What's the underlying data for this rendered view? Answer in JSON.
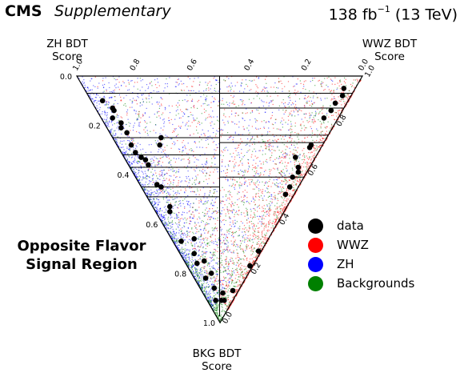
{
  "header": {
    "experiment": "CMS",
    "tag": "Supplementary",
    "lumi_value": "138 fb",
    "lumi_exp": "−1",
    "lumi_energy": "(13 TeV)"
  },
  "region_label": [
    "Opposite Flavor",
    "Signal Region"
  ],
  "colors": {
    "data": "#000000",
    "WWZ": "#ff0000",
    "ZH": "#0000ff",
    "Backgrounds": "#008000"
  },
  "chart_data": {
    "type": "scatter",
    "subtype": "ternary",
    "axes": {
      "ZH": {
        "label_line1": "ZH BDT",
        "label_line2": "Score",
        "ticks": [
          "0.0",
          "0.2",
          "0.4",
          "0.6",
          "0.8",
          "1.0"
        ],
        "range": [
          0,
          1
        ]
      },
      "WWZ": {
        "label_line1": "WWZ BDT",
        "label_line2": "Score",
        "ticks": [
          "0.0",
          "0.2",
          "0.4",
          "0.6",
          "0.8",
          "1.0"
        ],
        "range": [
          0,
          1
        ]
      },
      "BKG": {
        "label_line1": "BKG BDT",
        "label_line2": "Score",
        "ticks": [
          "0.0",
          "0.2",
          "0.4",
          "0.6",
          "0.8",
          "1.0"
        ],
        "range": [
          0,
          1
        ]
      }
    },
    "category_boundaries": {
      "zh_region_bkg_cuts": [
        0.07,
        0.25,
        0.32,
        0.37,
        0.45,
        0.49
      ],
      "wwz_region_bkg_cuts": [
        0.07,
        0.13,
        0.24,
        0.27,
        0.41
      ]
    },
    "legend": [
      {
        "label": "data",
        "color": "#000000"
      },
      {
        "label": "WWZ",
        "color": "#ff0000"
      },
      {
        "label": "ZH",
        "color": "#0000ff"
      },
      {
        "label": "Backgrounds",
        "color": "#008000"
      }
    ],
    "data_points": [
      {
        "zh": 0.86,
        "wwz": 0.04,
        "bkg": 0.1
      },
      {
        "zh": 0.8,
        "wwz": 0.06,
        "bkg": 0.14
      },
      {
        "zh": 0.81,
        "wwz": 0.06,
        "bkg": 0.13
      },
      {
        "zh": 0.74,
        "wwz": 0.05,
        "bkg": 0.21
      },
      {
        "zh": 0.75,
        "wwz": 0.06,
        "bkg": 0.19
      },
      {
        "zh": 0.79,
        "wwz": 0.04,
        "bkg": 0.17
      },
      {
        "zh": 0.71,
        "wwz": 0.06,
        "bkg": 0.23
      },
      {
        "zh": 0.58,
        "wwz": 0.17,
        "bkg": 0.25
      },
      {
        "zh": 0.57,
        "wwz": 0.15,
        "bkg": 0.28
      },
      {
        "zh": 0.67,
        "wwz": 0.05,
        "bkg": 0.28
      },
      {
        "zh": 0.61,
        "wwz": 0.06,
        "bkg": 0.33
      },
      {
        "zh": 0.64,
        "wwz": 0.05,
        "bkg": 0.31
      },
      {
        "zh": 0.57,
        "wwz": 0.07,
        "bkg": 0.36
      },
      {
        "zh": 0.59,
        "wwz": 0.07,
        "bkg": 0.34
      },
      {
        "zh": 0.5,
        "wwz": 0.06,
        "bkg": 0.44
      },
      {
        "zh": 0.48,
        "wwz": 0.07,
        "bkg": 0.45
      },
      {
        "zh": 0.41,
        "wwz": 0.06,
        "bkg": 0.53
      },
      {
        "zh": 0.4,
        "wwz": 0.05,
        "bkg": 0.55
      },
      {
        "zh": 0.3,
        "wwz": 0.03,
        "bkg": 0.67
      },
      {
        "zh": 0.26,
        "wwz": 0.08,
        "bkg": 0.66
      },
      {
        "zh": 0.23,
        "wwz": 0.05,
        "bkg": 0.72
      },
      {
        "zh": 0.2,
        "wwz": 0.04,
        "bkg": 0.76
      },
      {
        "zh": 0.18,
        "wwz": 0.07,
        "bkg": 0.75
      },
      {
        "zh": 0.14,
        "wwz": 0.04,
        "bkg": 0.82
      },
      {
        "zh": 0.13,
        "wwz": 0.07,
        "bkg": 0.8
      },
      {
        "zh": 0.09,
        "wwz": 0.05,
        "bkg": 0.86
      },
      {
        "zh": 0.06,
        "wwz": 0.03,
        "bkg": 0.91
      },
      {
        "zh": 0.05,
        "wwz": 0.07,
        "bkg": 0.88
      },
      {
        "zh": 0.04,
        "wwz": 0.05,
        "bkg": 0.91
      },
      {
        "zh": 0.03,
        "wwz": 0.06,
        "bkg": 0.91
      },
      {
        "zh": 0.02,
        "wwz": 0.11,
        "bkg": 0.87
      },
      {
        "zh": 0.01,
        "wwz": 0.28,
        "bkg": 0.71
      },
      {
        "zh": 0.01,
        "wwz": 0.22,
        "bkg": 0.77
      },
      {
        "zh": 0.04,
        "wwz": 0.91,
        "bkg": 0.05
      },
      {
        "zh": 0.03,
        "wwz": 0.89,
        "bkg": 0.08
      },
      {
        "zh": 0.04,
        "wwz": 0.85,
        "bkg": 0.11
      },
      {
        "zh": 0.04,
        "wwz": 0.82,
        "bkg": 0.14
      },
      {
        "zh": 0.05,
        "wwz": 0.78,
        "bkg": 0.17
      },
      {
        "zh": 0.04,
        "wwz": 0.68,
        "bkg": 0.28
      },
      {
        "zh": 0.04,
        "wwz": 0.67,
        "bkg": 0.29
      },
      {
        "zh": 0.07,
        "wwz": 0.6,
        "bkg": 0.33
      },
      {
        "zh": 0.04,
        "wwz": 0.59,
        "bkg": 0.37
      },
      {
        "zh": 0.03,
        "wwz": 0.58,
        "bkg": 0.39
      },
      {
        "zh": 0.04,
        "wwz": 0.55,
        "bkg": 0.41
      },
      {
        "zh": 0.03,
        "wwz": 0.52,
        "bkg": 0.45
      },
      {
        "zh": 0.03,
        "wwz": 0.49,
        "bkg": 0.48
      }
    ]
  }
}
